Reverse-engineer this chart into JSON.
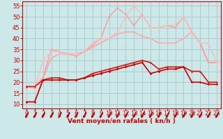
{
  "background_color": "#cce8e8",
  "grid_color": "#aacccc",
  "xlabel": "Vent moyen/en rafales ( kn/h )",
  "xlim": [
    -0.5,
    23.5
  ],
  "ylim": [
    8,
    57
  ],
  "yticks": [
    10,
    15,
    20,
    25,
    30,
    35,
    40,
    45,
    50,
    55
  ],
  "xticks": [
    0,
    1,
    2,
    3,
    4,
    5,
    6,
    7,
    8,
    9,
    10,
    11,
    12,
    13,
    14,
    15,
    16,
    17,
    18,
    19,
    20,
    21,
    22,
    23
  ],
  "series": [
    {
      "x": [
        0,
        1,
        2,
        3,
        4,
        5,
        6,
        7,
        8,
        9,
        10,
        11,
        12,
        13,
        14,
        15,
        16,
        17,
        18,
        19,
        20,
        21,
        22,
        23
      ],
      "y": [
        11,
        11,
        21,
        21,
        21,
        21,
        21,
        22,
        23,
        24,
        25,
        26,
        27,
        28,
        29,
        24,
        25,
        26,
        26,
        27,
        20,
        20,
        19,
        19
      ],
      "color": "#cc0000",
      "lw": 1.2,
      "marker": "D",
      "ms": 1.8,
      "zorder": 5
    },
    {
      "x": [
        0,
        1,
        2,
        3,
        4,
        5,
        6,
        7,
        8,
        9,
        10,
        11,
        12,
        13,
        14,
        15,
        16,
        17,
        18,
        19,
        20,
        21,
        22,
        23
      ],
      "y": [
        18,
        18,
        21,
        22,
        22,
        21,
        21,
        22,
        24,
        25,
        26,
        27,
        28,
        29,
        30,
        29,
        26,
        27,
        27,
        27,
        25,
        25,
        20,
        20
      ],
      "color": "#dd1111",
      "lw": 1.2,
      "marker": "^",
      "ms": 2.0,
      "zorder": 4
    },
    {
      "x": [
        0,
        1,
        2,
        3,
        4,
        5,
        6,
        7,
        8,
        9,
        10,
        11,
        12,
        13,
        14,
        15,
        16,
        17,
        18,
        19,
        20,
        21,
        22,
        23
      ],
      "y": [
        18,
        18,
        22,
        31,
        33,
        33,
        33,
        34,
        36,
        38,
        40,
        42,
        43,
        43,
        41,
        40,
        38,
        38,
        38,
        40,
        43,
        38,
        29,
        29
      ],
      "color": "#ffaaaa",
      "lw": 1.3,
      "marker": null,
      "ms": 0,
      "zorder": 2
    },
    {
      "x": [
        0,
        1,
        2,
        3,
        4,
        5,
        6,
        7,
        8,
        9,
        10,
        11,
        12,
        13,
        14,
        15,
        16,
        17,
        18,
        19,
        20,
        21,
        22,
        23
      ],
      "y": [
        11,
        11,
        22,
        35,
        34,
        33,
        32,
        34,
        37,
        40,
        50,
        54,
        51,
        46,
        51,
        45,
        45,
        46,
        45,
        50,
        43,
        38,
        29,
        29
      ],
      "color": "#ff9999",
      "lw": 1.0,
      "marker": "D",
      "ms": 1.5,
      "zorder": 3
    },
    {
      "x": [
        0,
        1,
        2,
        3,
        4,
        5,
        6,
        7,
        8,
        9,
        10,
        11,
        12,
        13,
        14,
        15,
        16,
        17,
        18,
        19,
        20,
        21,
        22,
        23
      ],
      "y": [
        18,
        17,
        30,
        34,
        34,
        33,
        33,
        34,
        38,
        40,
        40,
        43,
        50,
        55,
        51,
        45,
        45,
        46,
        46,
        50,
        43,
        38,
        38,
        29
      ],
      "color": "#ffbbbb",
      "lw": 1.0,
      "marker": "^",
      "ms": 1.5,
      "zorder": 3
    }
  ],
  "arrow_color": "#cc0000",
  "text_color": "#cc0000",
  "xlabel_fontsize": 6.5,
  "tick_fontsize": 6,
  "arrow_angles": [
    225,
    225,
    225,
    225,
    225,
    225,
    225,
    225,
    225,
    225,
    225,
    225,
    225,
    225,
    225,
    225,
    225,
    225,
    225,
    225,
    225,
    225,
    225,
    225
  ]
}
